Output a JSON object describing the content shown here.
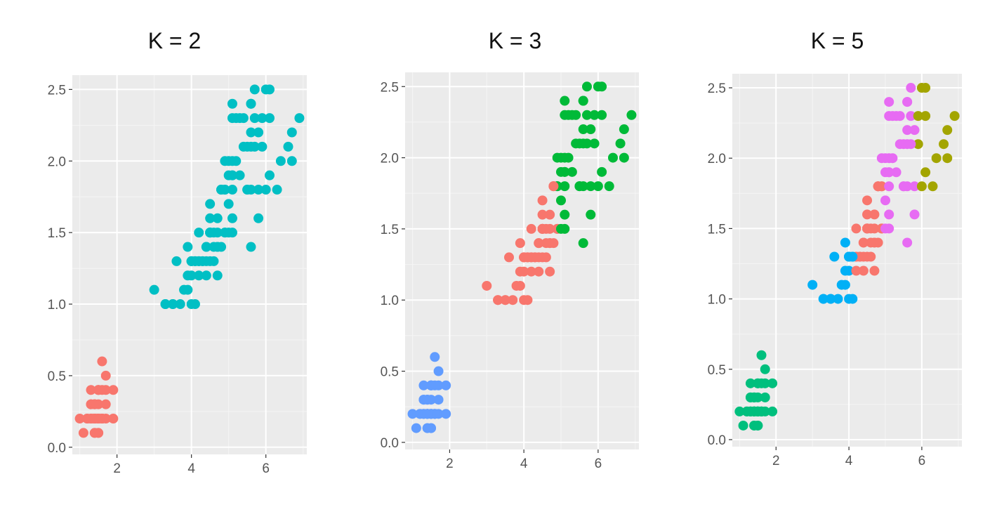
{
  "chart_data": [
    {
      "type": "scatter",
      "title": "K = 2",
      "xlabel": "",
      "ylabel": "",
      "xlim": [
        0.8,
        7.1
      ],
      "ylim": [
        -0.05,
        2.6
      ],
      "xticks": [
        "2",
        "4",
        "6"
      ],
      "yticks": [
        "0.0",
        "0.5",
        "1.0",
        "1.5",
        "2.0",
        "2.5"
      ],
      "grid": true,
      "cluster_colors": [
        "#F8766D",
        "#00BFC4"
      ],
      "points": []
    },
    {
      "type": "scatter",
      "title": "K = 3",
      "xlabel": "",
      "ylabel": "",
      "xlim": [
        0.8,
        7.1
      ],
      "ylim": [
        -0.05,
        2.6
      ],
      "xticks": [
        "2",
        "4",
        "6"
      ],
      "yticks": [
        "0.0",
        "0.5",
        "1.0",
        "1.5",
        "2.0",
        "2.5"
      ],
      "grid": true,
      "cluster_colors": [
        "#F8766D",
        "#00BA38",
        "#619CFF"
      ],
      "points": []
    },
    {
      "type": "scatter",
      "title": "K = 5",
      "xlabel": "",
      "ylabel": "",
      "xlim": [
        0.8,
        7.1
      ],
      "ylim": [
        -0.05,
        2.6
      ],
      "xticks": [
        "2",
        "4",
        "6"
      ],
      "yticks": [
        "0.0",
        "0.5",
        "1.0",
        "1.5",
        "2.0",
        "2.5"
      ],
      "grid": true,
      "cluster_colors": [
        "#F8766D",
        "#A3A500",
        "#00BF7D",
        "#00B0F6",
        "#E76BF3"
      ],
      "points": []
    }
  ],
  "base_points": [
    [
      1.4,
      0.2
    ],
    [
      1.4,
      0.2
    ],
    [
      1.3,
      0.2
    ],
    [
      1.5,
      0.2
    ],
    [
      1.4,
      0.2
    ],
    [
      1.7,
      0.4
    ],
    [
      1.4,
      0.3
    ],
    [
      1.5,
      0.2
    ],
    [
      1.4,
      0.2
    ],
    [
      1.5,
      0.1
    ],
    [
      1.5,
      0.2
    ],
    [
      1.6,
      0.2
    ],
    [
      1.4,
      0.1
    ],
    [
      1.1,
      0.1
    ],
    [
      1.2,
      0.2
    ],
    [
      1.5,
      0.4
    ],
    [
      1.3,
      0.4
    ],
    [
      1.4,
      0.3
    ],
    [
      1.7,
      0.3
    ],
    [
      1.5,
      0.3
    ],
    [
      1.7,
      0.2
    ],
    [
      1.5,
      0.4
    ],
    [
      1.0,
      0.2
    ],
    [
      1.7,
      0.5
    ],
    [
      1.9,
      0.2
    ],
    [
      1.6,
      0.2
    ],
    [
      1.6,
      0.4
    ],
    [
      1.5,
      0.2
    ],
    [
      1.4,
      0.2
    ],
    [
      1.6,
      0.2
    ],
    [
      1.6,
      0.2
    ],
    [
      1.5,
      0.4
    ],
    [
      1.5,
      0.1
    ],
    [
      1.4,
      0.2
    ],
    [
      1.5,
      0.2
    ],
    [
      1.2,
      0.2
    ],
    [
      1.3,
      0.2
    ],
    [
      1.4,
      0.1
    ],
    [
      1.3,
      0.2
    ],
    [
      1.5,
      0.2
    ],
    [
      1.3,
      0.3
    ],
    [
      1.3,
      0.3
    ],
    [
      1.3,
      0.2
    ],
    [
      1.6,
      0.6
    ],
    [
      1.9,
      0.4
    ],
    [
      1.4,
      0.3
    ],
    [
      1.6,
      0.2
    ],
    [
      1.4,
      0.2
    ],
    [
      1.5,
      0.2
    ],
    [
      1.4,
      0.2
    ],
    [
      4.7,
      1.4
    ],
    [
      4.5,
      1.5
    ],
    [
      4.9,
      1.5
    ],
    [
      4.0,
      1.3
    ],
    [
      4.6,
      1.5
    ],
    [
      4.5,
      1.3
    ],
    [
      4.7,
      1.6
    ],
    [
      3.3,
      1.0
    ],
    [
      4.6,
      1.3
    ],
    [
      3.9,
      1.4
    ],
    [
      3.5,
      1.0
    ],
    [
      4.2,
      1.5
    ],
    [
      4.0,
      1.0
    ],
    [
      4.7,
      1.4
    ],
    [
      3.6,
      1.3
    ],
    [
      4.4,
      1.4
    ],
    [
      4.5,
      1.5
    ],
    [
      4.1,
      1.0
    ],
    [
      4.5,
      1.5
    ],
    [
      3.9,
      1.1
    ],
    [
      4.8,
      1.8
    ],
    [
      4.0,
      1.3
    ],
    [
      4.9,
      1.5
    ],
    [
      4.7,
      1.2
    ],
    [
      4.3,
      1.3
    ],
    [
      4.4,
      1.4
    ],
    [
      4.8,
      1.4
    ],
    [
      5.0,
      1.7
    ],
    [
      4.5,
      1.5
    ],
    [
      3.5,
      1.0
    ],
    [
      3.8,
      1.1
    ],
    [
      3.7,
      1.0
    ],
    [
      3.9,
      1.2
    ],
    [
      5.1,
      1.6
    ],
    [
      4.5,
      1.5
    ],
    [
      4.5,
      1.6
    ],
    [
      4.7,
      1.5
    ],
    [
      4.4,
      1.3
    ],
    [
      4.1,
      1.3
    ],
    [
      4.0,
      1.3
    ],
    [
      4.4,
      1.2
    ],
    [
      4.6,
      1.4
    ],
    [
      4.0,
      1.2
    ],
    [
      3.3,
      1.0
    ],
    [
      4.2,
      1.3
    ],
    [
      4.2,
      1.2
    ],
    [
      4.2,
      1.3
    ],
    [
      4.3,
      1.3
    ],
    [
      3.0,
      1.1
    ],
    [
      4.1,
      1.3
    ],
    [
      6.0,
      2.5
    ],
    [
      5.1,
      1.9
    ],
    [
      5.9,
      2.1
    ],
    [
      5.6,
      1.8
    ],
    [
      5.8,
      2.2
    ],
    [
      6.6,
      2.1
    ],
    [
      4.5,
      1.7
    ],
    [
      6.3,
      1.8
    ],
    [
      5.8,
      1.8
    ],
    [
      6.1,
      2.5
    ],
    [
      5.1,
      2.0
    ],
    [
      5.3,
      1.9
    ],
    [
      5.5,
      2.1
    ],
    [
      5.0,
      2.0
    ],
    [
      5.1,
      2.4
    ],
    [
      5.3,
      2.3
    ],
    [
      5.5,
      1.8
    ],
    [
      6.7,
      2.2
    ],
    [
      6.9,
      2.3
    ],
    [
      5.0,
      1.5
    ],
    [
      5.7,
      2.3
    ],
    [
      4.9,
      2.0
    ],
    [
      6.7,
      2.0
    ],
    [
      4.9,
      1.8
    ],
    [
      5.7,
      2.1
    ],
    [
      6.0,
      1.8
    ],
    [
      4.8,
      1.8
    ],
    [
      4.9,
      1.8
    ],
    [
      5.6,
      2.1
    ],
    [
      5.8,
      1.6
    ],
    [
      6.1,
      1.9
    ],
    [
      6.4,
      2.0
    ],
    [
      5.6,
      2.2
    ],
    [
      5.1,
      1.5
    ],
    [
      5.6,
      1.4
    ],
    [
      6.1,
      2.3
    ],
    [
      5.6,
      2.4
    ],
    [
      5.5,
      1.8
    ],
    [
      4.8,
      1.8
    ],
    [
      5.4,
      2.1
    ],
    [
      5.6,
      2.4
    ],
    [
      5.1,
      2.3
    ],
    [
      5.1,
      1.9
    ],
    [
      5.9,
      2.3
    ],
    [
      5.7,
      2.5
    ],
    [
      5.2,
      2.3
    ],
    [
      5.0,
      1.9
    ],
    [
      5.2,
      2.0
    ],
    [
      5.4,
      2.3
    ],
    [
      5.1,
      1.8
    ]
  ]
}
